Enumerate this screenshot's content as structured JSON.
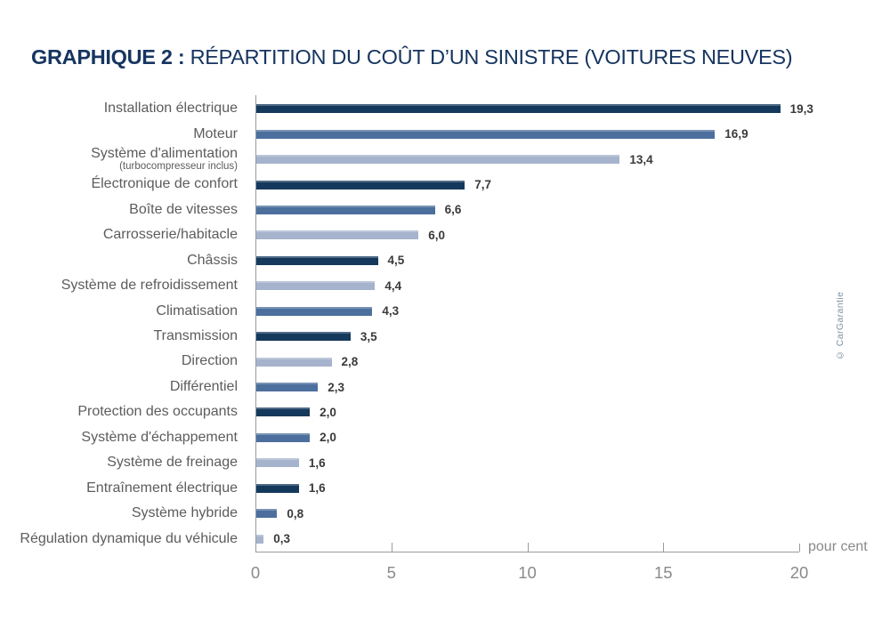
{
  "title": {
    "prefix": "GRAPHIQUE 2 :",
    "rest": " RÉPARTITION DU COÛT D’UN SINISTRE (VOITURES NEUVES)"
  },
  "credit": "© CarGarantie",
  "colors": {
    "bar_dark": "#15395C",
    "bar_medium": "#4C6F9D",
    "bar_light": "#A6B3CC",
    "title": "#163560",
    "category_label": "#5C5C5C",
    "value_label": "#3A3A3A",
    "axis_line": "#9B9B9B",
    "tick_label": "#8A8A8A",
    "unit_label": "#8A8A8A",
    "credit": "#7D8FA3"
  },
  "chart_data": {
    "type": "bar",
    "orientation": "horizontal",
    "title": "GRAPHIQUE 2 : RÉPARTITION DU COÛT D’UN SINISTRE (VOITURES NEUVES)",
    "xlabel": "pour cent",
    "ylabel": "",
    "xlim": [
      0,
      20
    ],
    "x_ticks": [
      0,
      5,
      10,
      15,
      20
    ],
    "x_tick_labels": [
      "0",
      "5",
      "10",
      "15",
      "20"
    ],
    "grid": false,
    "legend": false,
    "categories": [
      {
        "label": "Installation électrique",
        "sublabel": ""
      },
      {
        "label": "Moteur",
        "sublabel": ""
      },
      {
        "label": "Système d'alimentation",
        "sublabel": "(turbocompresseur inclus)"
      },
      {
        "label": "Électronique de confort",
        "sublabel": ""
      },
      {
        "label": "Boîte de vitesses",
        "sublabel": ""
      },
      {
        "label": "Carrosserie/habitacle",
        "sublabel": ""
      },
      {
        "label": "Châssis",
        "sublabel": ""
      },
      {
        "label": "Système de refroidissement",
        "sublabel": ""
      },
      {
        "label": "Climatisation",
        "sublabel": ""
      },
      {
        "label": "Transmission",
        "sublabel": ""
      },
      {
        "label": "Direction",
        "sublabel": ""
      },
      {
        "label": "Différentiel",
        "sublabel": ""
      },
      {
        "label": "Protection des occupants",
        "sublabel": ""
      },
      {
        "label": "Système d'échappement",
        "sublabel": ""
      },
      {
        "label": "Système de freinage",
        "sublabel": ""
      },
      {
        "label": "Entraînement électrique",
        "sublabel": ""
      },
      {
        "label": "Système hybride",
        "sublabel": ""
      },
      {
        "label": "Régulation dynamique du véhicule",
        "sublabel": ""
      }
    ],
    "values": [
      19.3,
      16.9,
      13.4,
      7.7,
      6.6,
      6.0,
      4.5,
      4.4,
      4.3,
      3.5,
      2.8,
      2.3,
      2.0,
      2.0,
      1.6,
      1.6,
      0.8,
      0.3
    ],
    "value_labels": [
      "19,3",
      "16,9",
      "13,4",
      "7,7",
      "6,6",
      "6,0",
      "4,5",
      "4,4",
      "4,3",
      "3,5",
      "2,8",
      "2,3",
      "2,0",
      "2,0",
      "1,6",
      "1,6",
      "0,8",
      "0,3"
    ],
    "bar_color_keys": [
      "dark",
      "medium",
      "light",
      "dark",
      "medium",
      "light",
      "dark",
      "light",
      "medium",
      "dark",
      "light",
      "medium",
      "dark",
      "medium",
      "light",
      "dark",
      "medium",
      "light"
    ]
  }
}
